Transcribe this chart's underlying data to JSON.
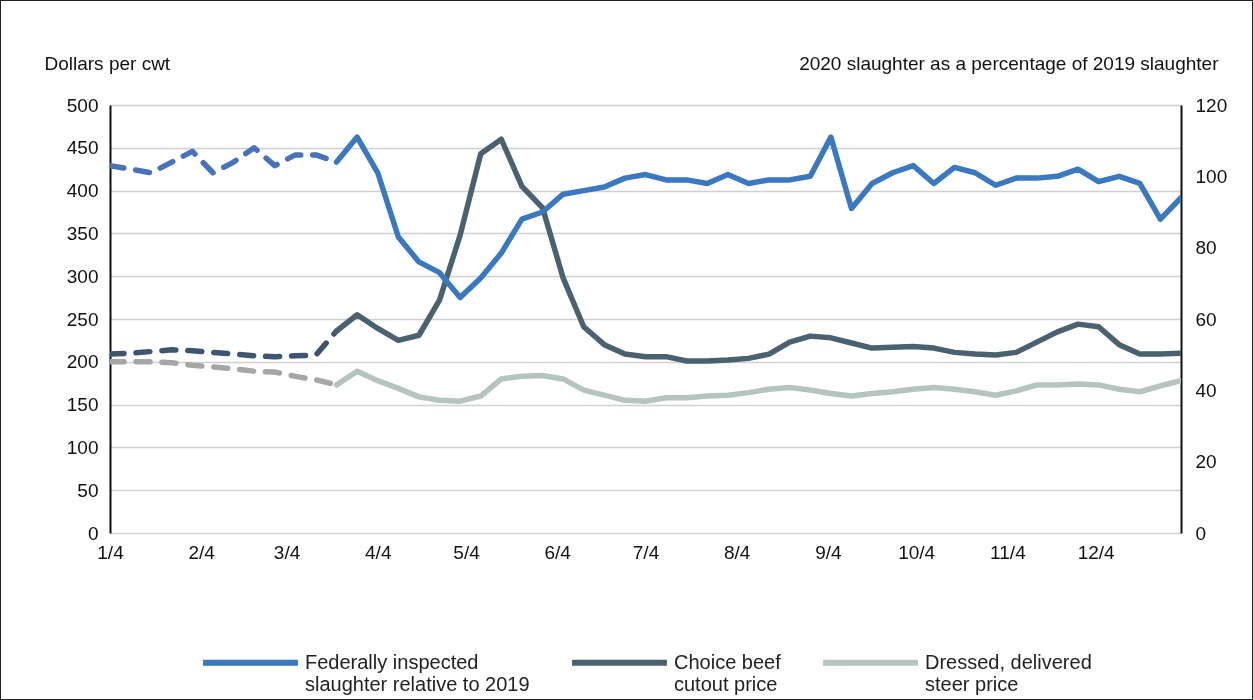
{
  "chart_data": {
    "type": "line",
    "xlabel": null,
    "ylabel": "Dollars per cwt",
    "y2label": "2020 slaughter as a percentage of 2019 slaughter",
    "xlim": [
      "2020-01-04",
      "2021-01-02"
    ],
    "xticks": [
      {
        "value": "2020-01-04",
        "label": "1/4"
      },
      {
        "value": "2020-02-04",
        "label": "2/4"
      },
      {
        "value": "2020-03-04",
        "label": "3/4"
      },
      {
        "value": "2020-04-04",
        "label": "4/4"
      },
      {
        "value": "2020-05-04",
        "label": "5/4"
      },
      {
        "value": "2020-06-04",
        "label": "6/4"
      },
      {
        "value": "2020-07-04",
        "label": "7/4"
      },
      {
        "value": "2020-08-04",
        "label": "8/4"
      },
      {
        "value": "2020-09-04",
        "label": "9/4"
      },
      {
        "value": "2020-10-04",
        "label": "10/4"
      },
      {
        "value": "2020-11-04",
        "label": "11/4"
      },
      {
        "value": "2020-12-04",
        "label": "12/4"
      }
    ],
    "ylim": [
      0,
      500
    ],
    "yticks": [
      0,
      50,
      100,
      150,
      200,
      250,
      300,
      350,
      400,
      450,
      500
    ],
    "y2lim": [
      0,
      120
    ],
    "y2ticks": [
      0,
      20,
      40,
      60,
      80,
      100,
      120
    ],
    "grid": "y",
    "legend": "bottom",
    "series": [
      {
        "color": "#4a72ba",
        "line_style": "dashed",
        "axis": "y2",
        "x": [
          "2020-01-04",
          "2020-01-11",
          "2020-01-18",
          "2020-01-25",
          "2020-02-01",
          "2020-02-08",
          "2020-02-15",
          "2020-02-22",
          "2020-02-29",
          "2020-03-07",
          "2020-03-14",
          "2020-03-21"
        ],
        "values": [
          103,
          102,
          101,
          104,
          107,
          101,
          104,
          108,
          103,
          106,
          106,
          104
        ]
      },
      {
        "name": "Federally inspected\nslaughter relative to 2019",
        "color": "#3a78c0",
        "line_style": "solid",
        "axis": "y2",
        "x": [
          "2020-03-21",
          "2020-03-28",
          "2020-04-04",
          "2020-04-11",
          "2020-04-18",
          "2020-04-25",
          "2020-05-02",
          "2020-05-09",
          "2020-05-16",
          "2020-05-23",
          "2020-05-30",
          "2020-06-06",
          "2020-06-13",
          "2020-06-20",
          "2020-06-27",
          "2020-07-04",
          "2020-07-11",
          "2020-07-18",
          "2020-07-25",
          "2020-08-01",
          "2020-08-08",
          "2020-08-15",
          "2020-08-22",
          "2020-08-29",
          "2020-09-05",
          "2020-09-12",
          "2020-09-19",
          "2020-09-26",
          "2020-10-03",
          "2020-10-10",
          "2020-10-17",
          "2020-10-24",
          "2020-10-31",
          "2020-11-07",
          "2020-11-14",
          "2020-11-21",
          "2020-11-28",
          "2020-12-05",
          "2020-12-12",
          "2020-12-19",
          "2020-12-26",
          "2021-01-02"
        ],
        "values": [
          104,
          111,
          101,
          83,
          76,
          73,
          66,
          71.5,
          78.5,
          88,
          90,
          95,
          96,
          97,
          99.5,
          100.5,
          99,
          99,
          98,
          100.5,
          98,
          99,
          99,
          100,
          111,
          91,
          98,
          101,
          103,
          98,
          102.5,
          101,
          97.5,
          99.5,
          99.5,
          100,
          102,
          98.5,
          100,
          98,
          88,
          94
        ]
      },
      {
        "color": "#3e5570",
        "line_style": "dashed",
        "x": [
          "2020-01-04",
          "2020-01-11",
          "2020-01-18",
          "2020-01-25",
          "2020-02-01",
          "2020-02-08",
          "2020-02-15",
          "2020-02-22",
          "2020-02-29",
          "2020-03-07",
          "2020-03-14",
          "2020-03-21"
        ],
        "values": [
          209,
          210,
          212,
          214,
          213,
          211,
          209,
          207,
          206,
          207,
          208,
          236
        ]
      },
      {
        "name": "Choice beef\ncutout price",
        "color": "#4a6270",
        "line_style": "solid",
        "x": [
          "2020-03-21",
          "2020-03-28",
          "2020-04-04",
          "2020-04-11",
          "2020-04-18",
          "2020-04-25",
          "2020-05-02",
          "2020-05-09",
          "2020-05-16",
          "2020-05-23",
          "2020-05-30",
          "2020-06-06",
          "2020-06-13",
          "2020-06-20",
          "2020-06-27",
          "2020-07-04",
          "2020-07-11",
          "2020-07-18",
          "2020-07-25",
          "2020-08-01",
          "2020-08-08",
          "2020-08-15",
          "2020-08-22",
          "2020-08-29",
          "2020-09-05",
          "2020-09-12",
          "2020-09-19",
          "2020-09-26",
          "2020-10-03",
          "2020-10-10",
          "2020-10-17",
          "2020-10-24",
          "2020-10-31",
          "2020-11-07",
          "2020-11-14",
          "2020-11-21",
          "2020-11-28",
          "2020-12-05",
          "2020-12-12",
          "2020-12-19",
          "2020-12-26",
          "2021-01-02"
        ],
        "values": [
          236,
          255,
          239,
          225,
          231,
          272,
          348,
          443,
          460,
          405,
          380,
          298,
          241,
          220,
          209,
          206,
          206,
          201,
          201,
          202,
          204,
          209,
          223,
          230,
          228,
          222,
          216,
          217,
          218,
          216,
          211,
          209,
          208,
          211,
          223,
          235,
          244,
          241,
          220,
          209,
          209,
          210
        ]
      },
      {
        "color": "#a6a6a6",
        "line_style": "dashed",
        "x": [
          "2020-01-04",
          "2020-01-11",
          "2020-01-18",
          "2020-01-25",
          "2020-02-01",
          "2020-02-08",
          "2020-02-15",
          "2020-02-22",
          "2020-02-29",
          "2020-03-07",
          "2020-03-14",
          "2020-03-21"
        ],
        "values": [
          200,
          200,
          200,
          199,
          196,
          194,
          192,
          189,
          188,
          183,
          179,
          173
        ]
      },
      {
        "name": "Dressed, delivered\nsteer price",
        "color": "#b5c4bc",
        "line_style": "solid",
        "x": [
          "2020-03-21",
          "2020-03-28",
          "2020-04-04",
          "2020-04-11",
          "2020-04-18",
          "2020-04-25",
          "2020-05-02",
          "2020-05-09",
          "2020-05-16",
          "2020-05-23",
          "2020-05-30",
          "2020-06-06",
          "2020-06-13",
          "2020-06-20",
          "2020-06-27",
          "2020-07-04",
          "2020-07-11",
          "2020-07-18",
          "2020-07-25",
          "2020-08-01",
          "2020-08-08",
          "2020-08-15",
          "2020-08-22",
          "2020-08-29",
          "2020-09-05",
          "2020-09-12",
          "2020-09-19",
          "2020-09-26",
          "2020-10-03",
          "2020-10-10",
          "2020-10-17",
          "2020-10-24",
          "2020-10-31",
          "2020-11-07",
          "2020-11-14",
          "2020-11-21",
          "2020-11-28",
          "2020-12-05",
          "2020-12-12",
          "2020-12-19",
          "2020-12-26",
          "2021-01-02"
        ],
        "values": [
          173,
          189,
          178,
          169,
          159,
          155,
          154,
          160,
          180,
          183,
          184,
          180,
          167,
          161,
          155,
          154,
          158,
          158,
          160,
          161,
          164,
          168,
          170,
          167,
          163,
          160,
          163,
          165,
          168,
          170,
          168,
          165,
          161,
          166,
          173,
          173,
          174,
          173,
          168,
          165,
          172,
          178
        ]
      }
    ]
  }
}
